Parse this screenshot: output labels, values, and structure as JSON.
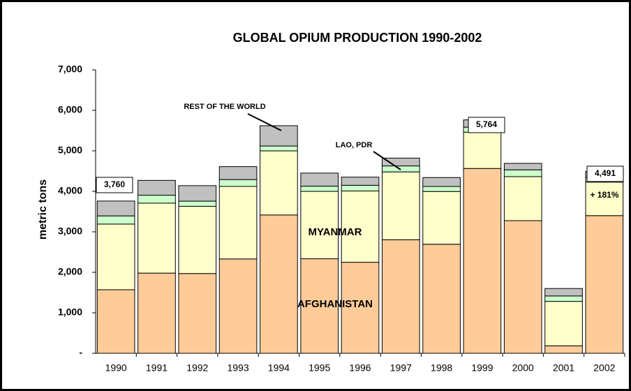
{
  "chart_data": {
    "type": "stacked-bar",
    "title": "GLOBAL OPIUM PRODUCTION 1990-2002",
    "y_label": "metric tons",
    "categories": [
      "1990",
      "1991",
      "1992",
      "1993",
      "1994",
      "1995",
      "1996",
      "1997",
      "1998",
      "1999",
      "2000",
      "2001",
      "2002"
    ],
    "series": [
      {
        "name": "AFGHANISTAN",
        "color": "#FFCC99",
        "values": [
          1570,
          1980,
          1970,
          2330,
          3416,
          2335,
          2248,
          2804,
          2693,
          4565,
          3276,
          185,
          3400
        ]
      },
      {
        "name": "MYANMAR",
        "color": "#FFFFCC",
        "values": [
          1621,
          1728,
          1660,
          1791,
          1583,
          1664,
          1760,
          1676,
          1303,
          895,
          1087,
          1097,
          828
        ]
      },
      {
        "name": "LAO, PDR",
        "color": "#CCFFCC",
        "values": [
          202,
          196,
          127,
          169,
          120,
          128,
          140,
          147,
          124,
          124,
          167,
          134,
          112
        ]
      },
      {
        "name": "REST OF THE WORLD",
        "color": "#C0C0C0",
        "values": [
          367,
          366,
          383,
          320,
          501,
          323,
          202,
          193,
          220,
          180,
          160,
          184,
          151
        ]
      }
    ],
    "annotations": [
      "3,760",
      "5,764",
      "4,491",
      "+ 181%"
    ],
    "ylim": [
      0,
      7000
    ],
    "yticks": [
      {
        "value": 0,
        "label": "-"
      },
      {
        "value": 1000,
        "label": "1,000"
      },
      {
        "value": 2000,
        "label": "2,000"
      },
      {
        "value": 3000,
        "label": "3,000"
      },
      {
        "value": 4000,
        "label": "4,000"
      },
      {
        "value": 5000,
        "label": "5,000"
      },
      {
        "value": 6000,
        "label": "6,000"
      },
      {
        "value": 7000,
        "label": "7,000"
      }
    ],
    "grid": false
  }
}
